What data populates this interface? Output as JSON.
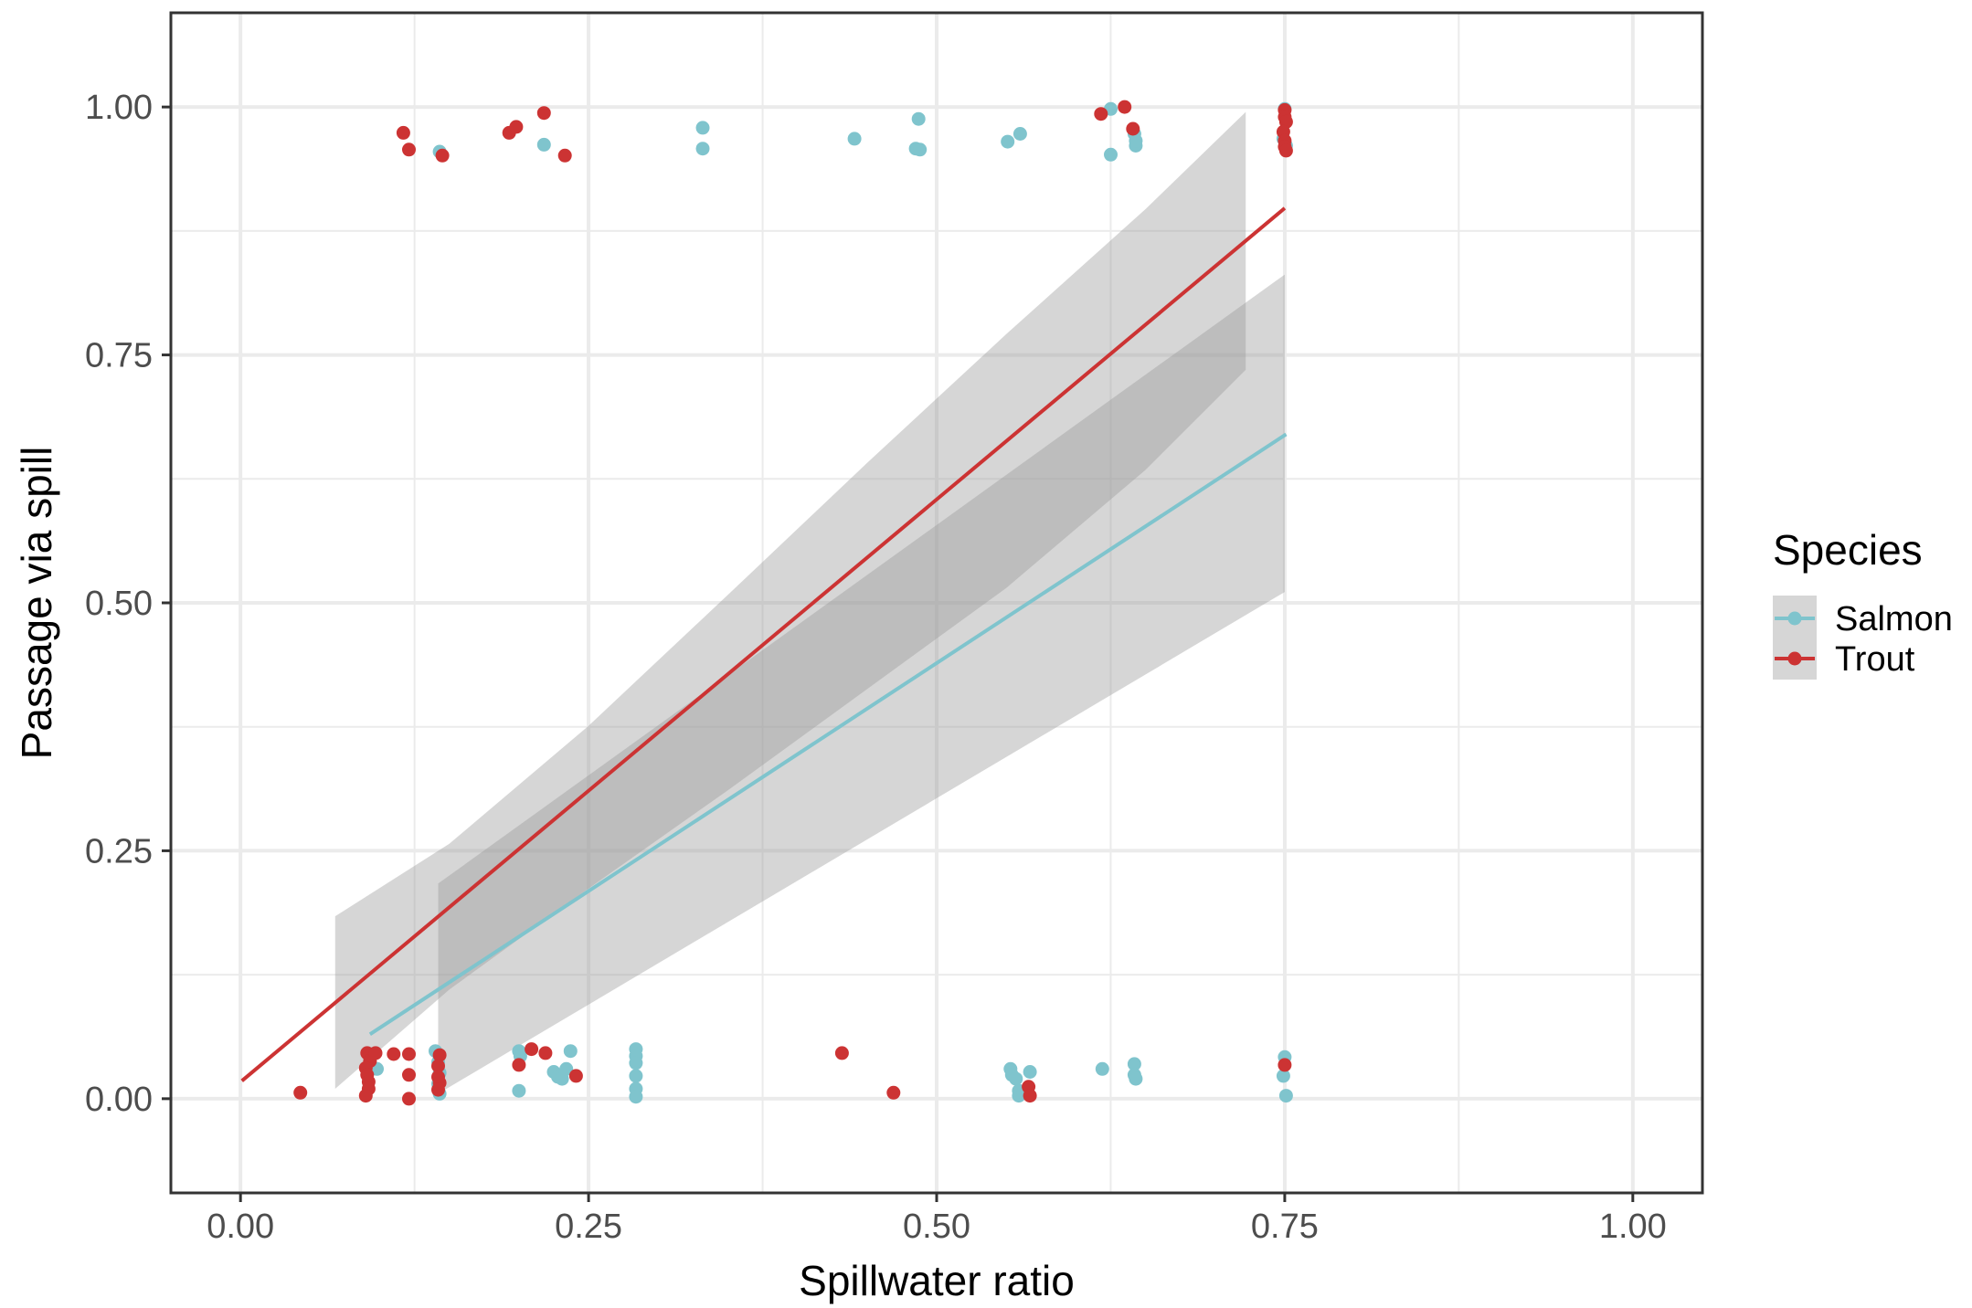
{
  "chart_data": {
    "type": "scatter",
    "title": "",
    "xlabel": "Spillwater ratio",
    "ylabel": "Passage via spill",
    "xlim": [
      -0.05,
      1.05
    ],
    "ylim": [
      -0.095,
      1.095
    ],
    "x_ticks": [
      "0.00",
      "0.25",
      "0.50",
      "0.75",
      "1.00"
    ],
    "y_ticks": [
      "0.00",
      "0.25",
      "0.50",
      "0.75",
      "1.00"
    ],
    "grid": true,
    "legend": {
      "title": "Species",
      "position": "right"
    },
    "series": [
      {
        "name": "Salmon",
        "color": "#7fc4cd",
        "points": [
          [
            0.143,
            0.955
          ],
          [
            0.218,
            0.962
          ],
          [
            0.332,
            0.979
          ],
          [
            0.332,
            0.958
          ],
          [
            0.441,
            0.968
          ],
          [
            0.487,
            0.988
          ],
          [
            0.485,
            0.958
          ],
          [
            0.488,
            0.957
          ],
          [
            0.551,
            0.965
          ],
          [
            0.56,
            0.973
          ],
          [
            0.625,
            0.998
          ],
          [
            0.625,
            0.952
          ],
          [
            0.642,
            0.973
          ],
          [
            0.643,
            0.961
          ],
          [
            0.643,
            0.966
          ],
          [
            0.75,
            0.998
          ],
          [
            0.751,
            0.961
          ],
          [
            0.749,
            0.968
          ],
          [
            0.095,
            0.045
          ],
          [
            0.098,
            0.03
          ],
          [
            0.14,
            0.048
          ],
          [
            0.142,
            0.037
          ],
          [
            0.143,
            0.026
          ],
          [
            0.142,
            0.015
          ],
          [
            0.143,
            0.005
          ],
          [
            0.2,
            0.048
          ],
          [
            0.201,
            0.043
          ],
          [
            0.2,
            0.008
          ],
          [
            0.225,
            0.027
          ],
          [
            0.228,
            0.022
          ],
          [
            0.231,
            0.02
          ],
          [
            0.237,
            0.048
          ],
          [
            0.234,
            0.03
          ],
          [
            0.284,
            0.05
          ],
          [
            0.284,
            0.043
          ],
          [
            0.284,
            0.036
          ],
          [
            0.284,
            0.023
          ],
          [
            0.284,
            0.01
          ],
          [
            0.284,
            0.002
          ],
          [
            0.553,
            0.03
          ],
          [
            0.554,
            0.024
          ],
          [
            0.557,
            0.02
          ],
          [
            0.559,
            0.008
          ],
          [
            0.559,
            0.003
          ],
          [
            0.562,
            0.006
          ],
          [
            0.567,
            0.027
          ],
          [
            0.619,
            0.03
          ],
          [
            0.642,
            0.035
          ],
          [
            0.642,
            0.024
          ],
          [
            0.643,
            0.02
          ],
          [
            0.75,
            0.042
          ],
          [
            0.749,
            0.023
          ],
          [
            0.751,
            0.003
          ]
        ],
        "fit": {
          "x": [
            0.093,
            0.751
          ],
          "y": [
            0.065,
            0.67
          ]
        },
        "ribbon": {
          "x": [
            0.142,
            0.75
          ],
          "upper": [
            0.217,
            0.831
          ],
          "lower": [
            0.005,
            0.511
          ]
        }
      },
      {
        "name": "Trout",
        "color": "#cc3333",
        "points": [
          [
            0.117,
            0.974
          ],
          [
            0.121,
            0.957
          ],
          [
            0.145,
            0.951
          ],
          [
            0.193,
            0.974
          ],
          [
            0.198,
            0.98
          ],
          [
            0.218,
            0.994
          ],
          [
            0.233,
            0.951
          ],
          [
            0.618,
            0.993
          ],
          [
            0.635,
            1.0
          ],
          [
            0.641,
            0.978
          ],
          [
            0.75,
            0.997
          ],
          [
            0.75,
            0.99
          ],
          [
            0.751,
            0.985
          ],
          [
            0.749,
            0.975
          ],
          [
            0.75,
            0.966
          ],
          [
            0.75,
            0.96
          ],
          [
            0.751,
            0.956
          ],
          [
            0.043,
            0.006
          ],
          [
            0.091,
            0.046
          ],
          [
            0.093,
            0.038
          ],
          [
            0.09,
            0.031
          ],
          [
            0.091,
            0.024
          ],
          [
            0.092,
            0.017
          ],
          [
            0.092,
            0.01
          ],
          [
            0.09,
            0.003
          ],
          [
            0.097,
            0.046
          ],
          [
            0.11,
            0.045
          ],
          [
            0.121,
            0.045
          ],
          [
            0.121,
            0.024
          ],
          [
            0.121,
            0.0
          ],
          [
            0.143,
            0.044
          ],
          [
            0.142,
            0.033
          ],
          [
            0.142,
            0.022
          ],
          [
            0.143,
            0.016
          ],
          [
            0.142,
            0.009
          ],
          [
            0.2,
            0.034
          ],
          [
            0.209,
            0.05
          ],
          [
            0.219,
            0.046
          ],
          [
            0.241,
            0.023
          ],
          [
            0.432,
            0.046
          ],
          [
            0.469,
            0.006
          ],
          [
            0.566,
            0.012
          ],
          [
            0.567,
            0.003
          ],
          [
            0.75,
            0.034
          ]
        ],
        "fit": {
          "x": [
            0.001,
            0.75
          ],
          "y": [
            0.018,
            0.898
          ]
        },
        "ribbon": {
          "x": [
            0.068,
            0.15,
            0.25,
            0.35,
            0.45,
            0.55,
            0.65,
            0.722
          ],
          "upper": [
            0.184,
            0.257,
            0.376,
            0.508,
            0.641,
            0.771,
            0.897,
            0.995
          ],
          "lower": [
            0.01,
            0.11,
            0.212,
            0.311,
            0.413,
            0.515,
            0.634,
            0.735
          ]
        }
      }
    ]
  }
}
